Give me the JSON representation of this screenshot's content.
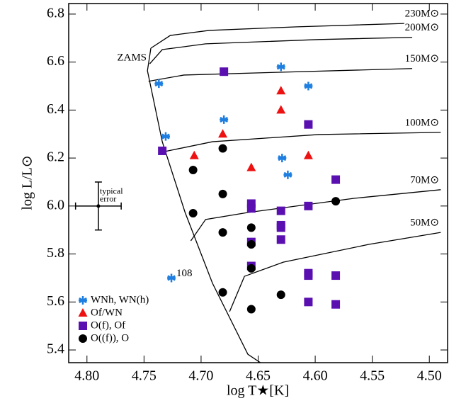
{
  "chart_data": {
    "type": "scatter",
    "xlabel": "log T★[K]",
    "ylabel": "log L/L⊙",
    "xlim": [
      4.816,
      4.484
    ],
    "ylim": [
      5.347,
      6.844
    ],
    "xticks": [
      {
        "value": 4.8,
        "label": "4.80"
      },
      {
        "value": 4.75,
        "label": "4.75"
      },
      {
        "value": 4.7,
        "label": "4.70"
      },
      {
        "value": 4.65,
        "label": "4.65"
      },
      {
        "value": 4.6,
        "label": "4.60"
      },
      {
        "value": 4.55,
        "label": "4.55"
      },
      {
        "value": 4.5,
        "label": "4.50"
      }
    ],
    "yticks": [
      {
        "value": 5.4,
        "label": "5.4"
      },
      {
        "value": 5.6,
        "label": "5.6"
      },
      {
        "value": 5.8,
        "label": "5.8"
      },
      {
        "value": 6,
        "label": "6.0"
      },
      {
        "value": 6.2,
        "label": "6.2"
      },
      {
        "value": 6.4,
        "label": "6.4"
      },
      {
        "value": 6.6,
        "label": "6.6"
      },
      {
        "value": 6.8,
        "label": "6.8"
      }
    ],
    "series": [
      {
        "name": "WNh, WN(h)",
        "marker": "asterisk",
        "color": "#1f7fe0",
        "x": [
          4.737,
          4.731,
          4.68,
          4.63,
          4.606,
          4.629,
          4.624,
          4.726
        ],
        "y": [
          6.51,
          6.29,
          6.36,
          6.58,
          6.5,
          6.2,
          6.13,
          5.7
        ]
      },
      {
        "name": "Of/WN",
        "marker": "triangle",
        "color": "#ee1111",
        "x": [
          4.63,
          4.63,
          4.681,
          4.706,
          4.656,
          4.606
        ],
        "y": [
          6.48,
          6.4,
          6.3,
          6.21,
          6.16,
          6.21
        ]
      },
      {
        "name": "O(f), Of",
        "marker": "square",
        "color": "#5a0fb0",
        "x": [
          4.68,
          4.734,
          4.606,
          4.582,
          4.606,
          4.63,
          4.656,
          4.656,
          4.63,
          4.63,
          4.63,
          4.656,
          4.656,
          4.606,
          4.606,
          4.582,
          4.606,
          4.582
        ],
        "y": [
          6.56,
          6.23,
          6.34,
          6.11,
          6.0,
          5.98,
          6.01,
          5.99,
          5.92,
          5.91,
          5.86,
          5.85,
          5.75,
          5.72,
          5.71,
          5.71,
          5.6,
          5.59
        ]
      },
      {
        "name": "O((f)), O",
        "marker": "circle",
        "color": "#000000",
        "x": [
          4.681,
          4.707,
          4.681,
          4.707,
          4.681,
          4.656,
          4.656,
          4.582,
          4.656,
          4.681,
          4.63,
          4.656
        ],
        "y": [
          6.24,
          6.15,
          6.05,
          5.97,
          5.89,
          5.91,
          5.84,
          6.02,
          5.74,
          5.64,
          5.63,
          5.57
        ]
      }
    ],
    "annotation": "108",
    "zams": {
      "label": "ZAMS",
      "x": [
        4.744,
        4.747,
        4.734,
        4.714,
        4.69,
        4.659,
        4.648
      ],
      "y": [
        6.658,
        6.564,
        6.268,
        5.973,
        5.678,
        5.382,
        5.347
      ]
    },
    "tracks": [
      {
        "label": "230M⊙",
        "x": [
          4.744,
          4.727,
          4.693,
          4.616,
          4.522
        ],
        "y": [
          6.658,
          6.711,
          6.732,
          6.747,
          6.761
        ]
      },
      {
        "label": "200M⊙",
        "x": [
          4.745,
          4.734,
          4.696,
          4.597,
          4.515
        ],
        "y": [
          6.593,
          6.652,
          6.676,
          6.694,
          6.703
        ]
      },
      {
        "label": "150M⊙",
        "x": [
          4.746,
          4.715,
          4.628,
          4.515
        ],
        "y": [
          6.52,
          6.546,
          6.558,
          6.573
        ]
      },
      {
        "label": "100M⊙",
        "x": [
          4.735,
          4.69,
          4.597,
          4.49
        ],
        "y": [
          6.224,
          6.268,
          6.298,
          6.307
        ]
      },
      {
        "label": "70M⊙",
        "x": [
          4.709,
          4.696,
          4.659,
          4.566,
          4.49
        ],
        "y": [
          5.855,
          5.944,
          5.973,
          6.032,
          6.068
        ]
      },
      {
        "label": "50M⊙",
        "x": [
          4.675,
          4.662,
          4.628,
          4.553,
          4.49
        ],
        "y": [
          5.56,
          5.707,
          5.766,
          5.84,
          5.89
        ]
      }
    ],
    "error_bar": {
      "x": 4.79,
      "y": 6.0,
      "xerr": 0.02,
      "yerr": 0.1,
      "label": [
        "typical",
        "error"
      ]
    },
    "legend": "lower left"
  }
}
